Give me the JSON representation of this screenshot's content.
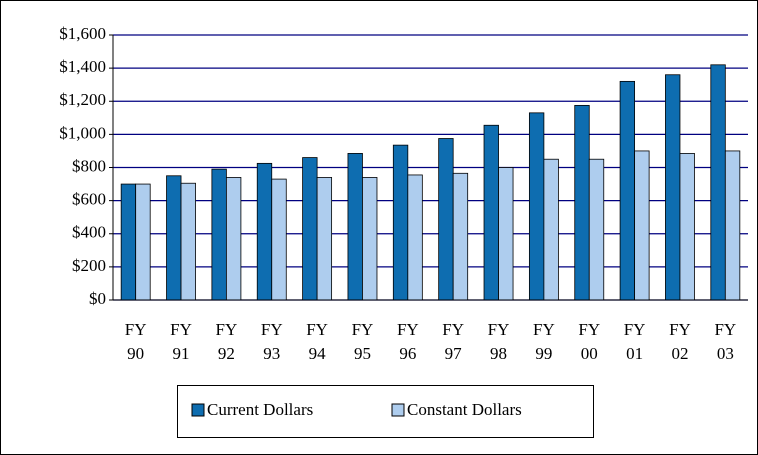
{
  "chart_data": {
    "type": "bar",
    "categories": [
      "FY 90",
      "FY 91",
      "FY 92",
      "FY 93",
      "FY 94",
      "FY 95",
      "FY 96",
      "FY 97",
      "FY 98",
      "FY 99",
      "FY 00",
      "FY 01",
      "FY 02",
      "FY 03"
    ],
    "series": [
      {
        "name": "Current Dollars",
        "color": "#0e6db0",
        "values": [
          700,
          750,
          790,
          825,
          860,
          885,
          935,
          975,
          1055,
          1130,
          1175,
          1320,
          1360,
          1420
        ]
      },
      {
        "name": "Constant Dollars",
        "color": "#aecdee",
        "values": [
          700,
          705,
          740,
          730,
          740,
          740,
          755,
          765,
          800,
          850,
          850,
          900,
          885,
          900
        ]
      }
    ],
    "ylim": [
      0,
      1600
    ],
    "yticks": [
      {
        "value": 0,
        "label": "$0"
      },
      {
        "value": 200,
        "label": "$200"
      },
      {
        "value": 400,
        "label": "$400"
      },
      {
        "value": 600,
        "label": "$600"
      },
      {
        "value": 800,
        "label": "$800"
      },
      {
        "value": 1000,
        "label": "$1,000"
      },
      {
        "value": 1200,
        "label": "$1,200"
      },
      {
        "value": 1400,
        "label": "$1,400"
      },
      {
        "value": 1600,
        "label": "$1,600"
      }
    ],
    "grid": true,
    "legend": "bottom"
  }
}
